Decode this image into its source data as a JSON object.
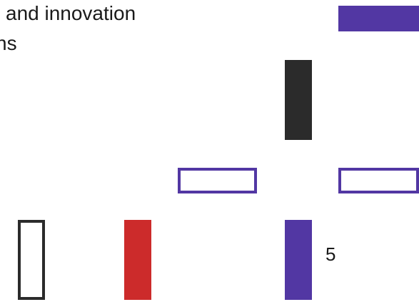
{
  "heading": {
    "line1": "l and innovation",
    "line2": "ns"
  },
  "colors": {
    "purple": "#5237a3",
    "black": "#2b2b2b",
    "red": "#cc2b2b",
    "white": "#ffffff"
  },
  "labels": {
    "number": "5"
  }
}
